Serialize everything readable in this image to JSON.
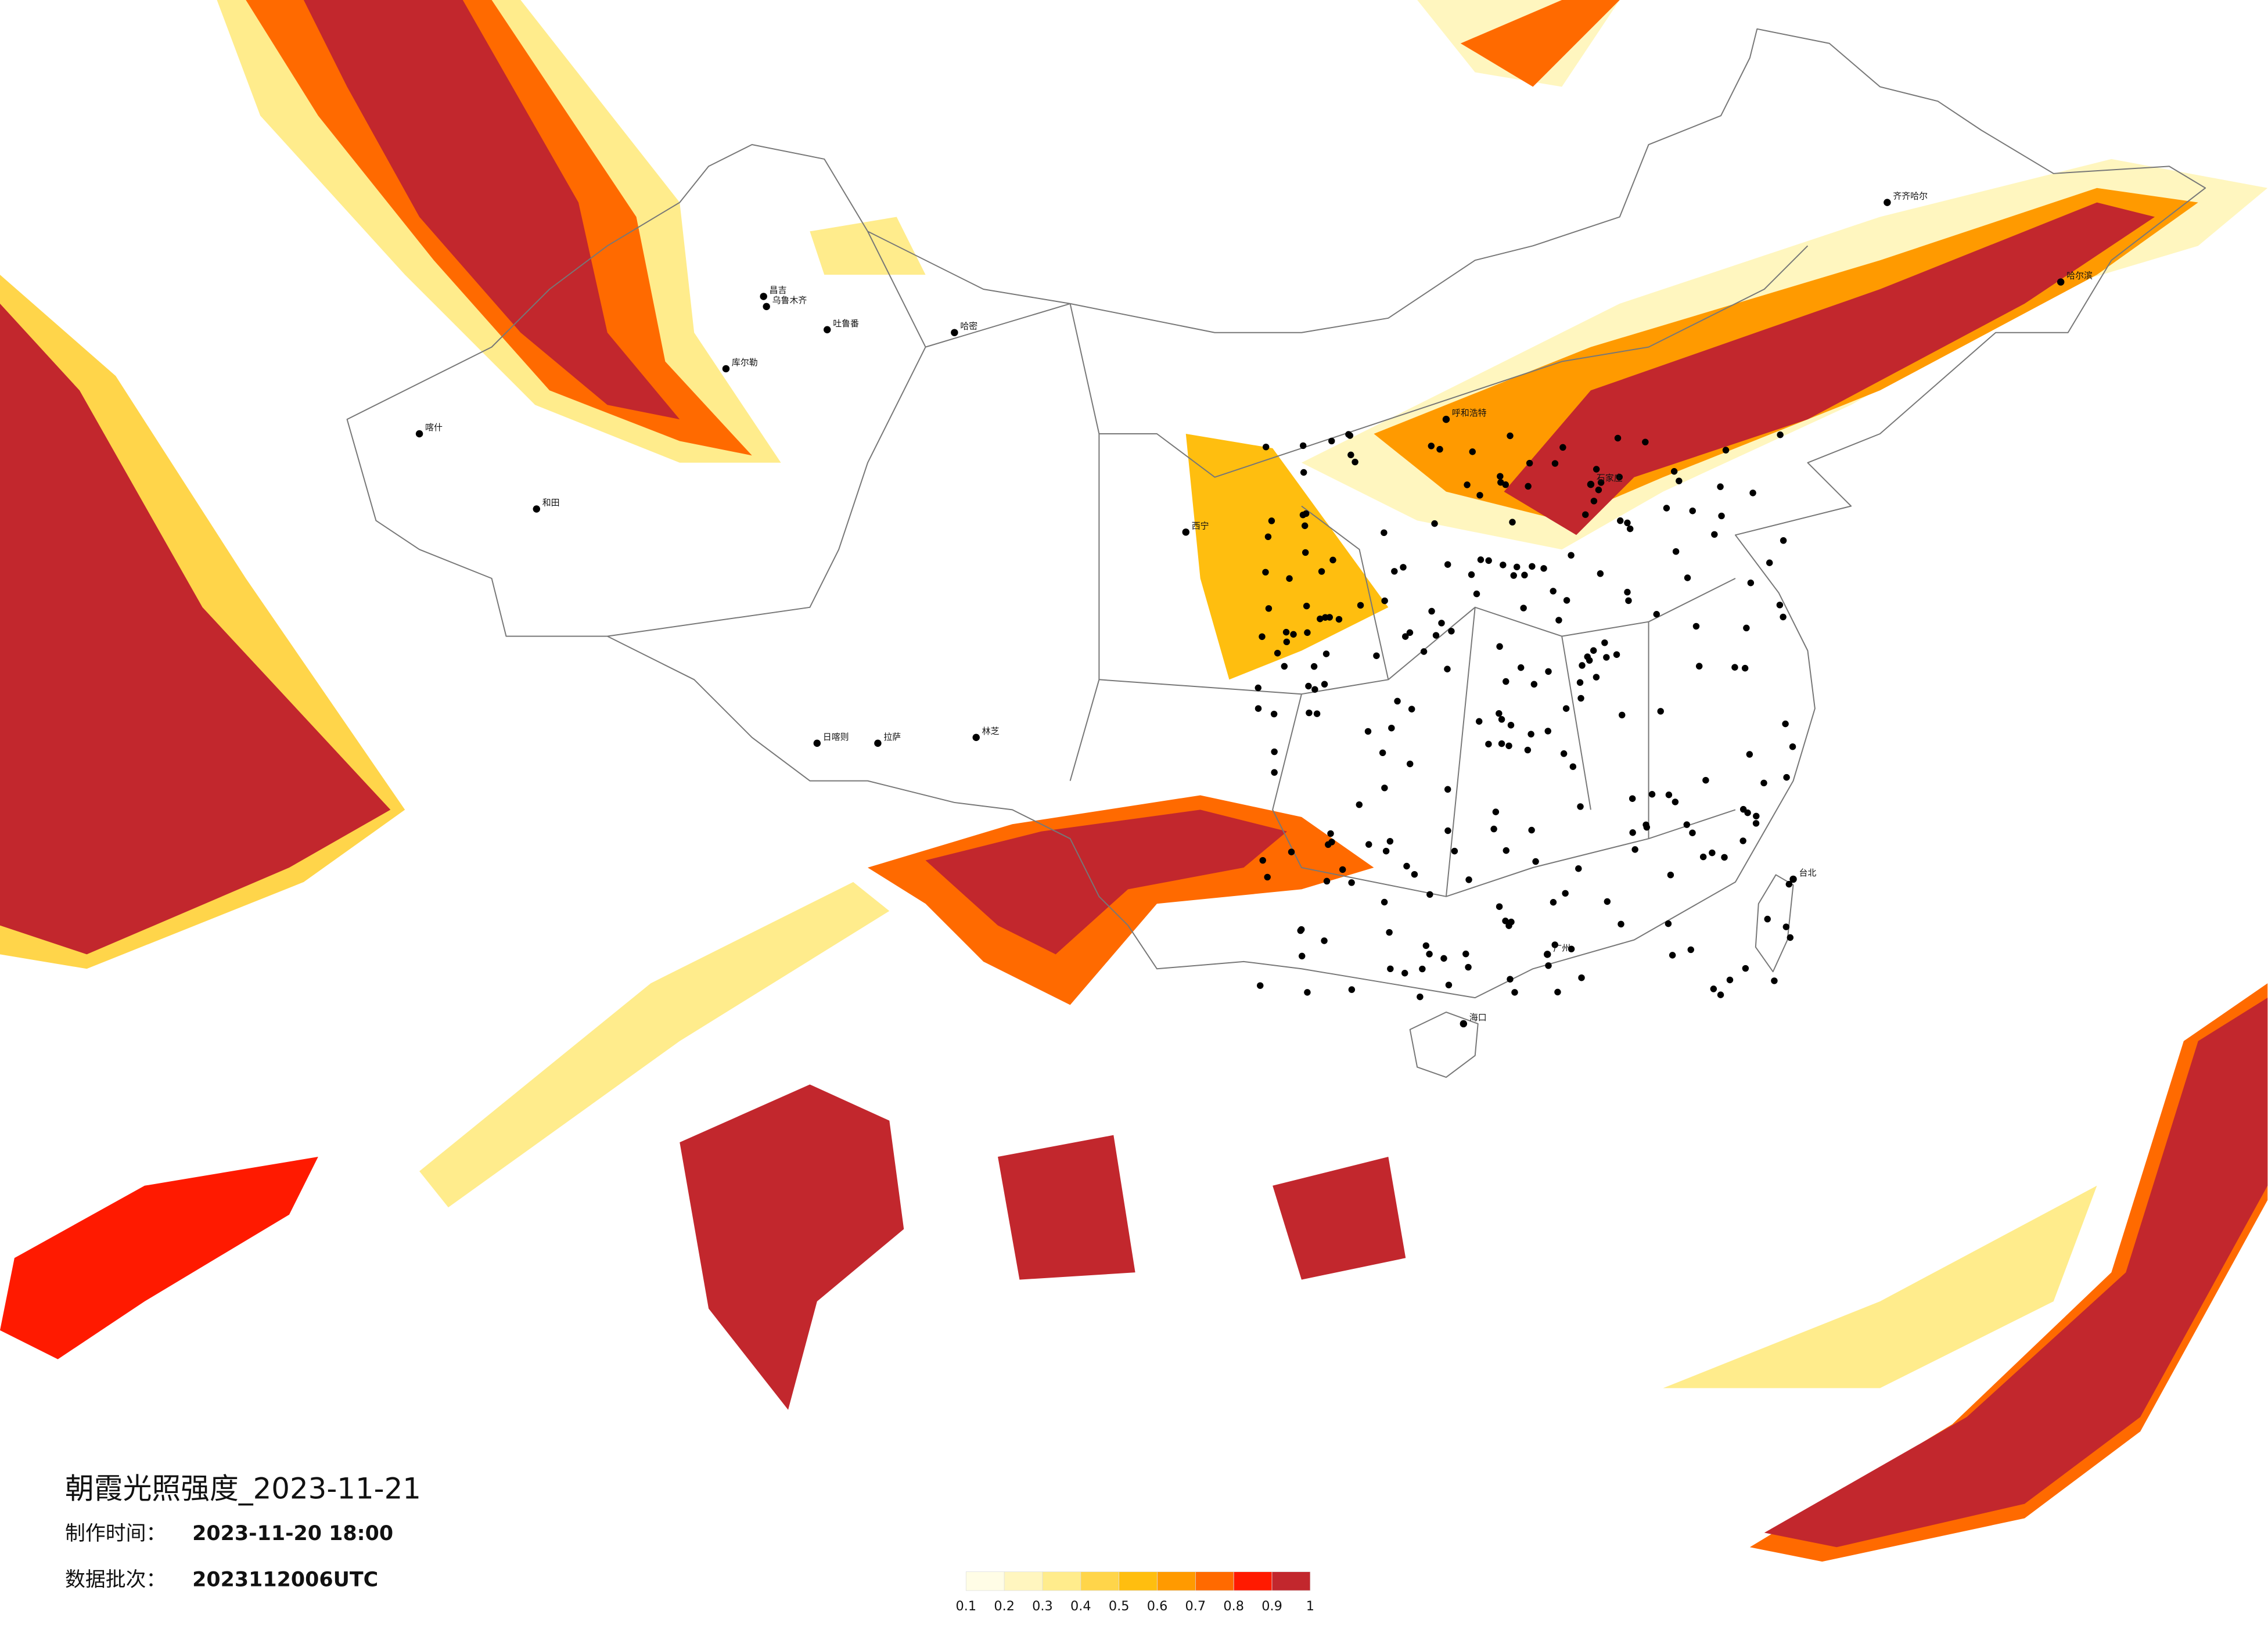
{
  "map": {
    "title": "朝霞光照强度_2023-11-21",
    "meta": [
      {
        "label": "制作时间：",
        "value": "2023-11-20 18:00"
      },
      {
        "label": "数据批次：",
        "value": "2023112006UTC"
      }
    ],
    "legend": {
      "ticks": [
        0.1,
        0.2,
        0.3,
        0.4,
        0.5,
        0.6,
        0.7,
        0.8,
        0.9,
        1
      ],
      "colors": [
        "#fffde6",
        "#fff6bf",
        "#ffec8c",
        "#ffd54a",
        "#ffbe0f",
        "#ff9a00",
        "#ff6a00",
        "#ff1a00",
        "#c2272d"
      ]
    },
    "cities": [
      "乌鲁木齐",
      "昌吉",
      "吐鲁番",
      "哈密",
      "库尔勒",
      "和田",
      "喀什",
      "日喀则",
      "拉萨",
      "林芝",
      "西宁",
      "海口",
      "台北",
      "哈尔滨",
      "齐齐哈尔",
      "呼和浩特",
      "石家庄",
      "广州"
    ]
  }
}
